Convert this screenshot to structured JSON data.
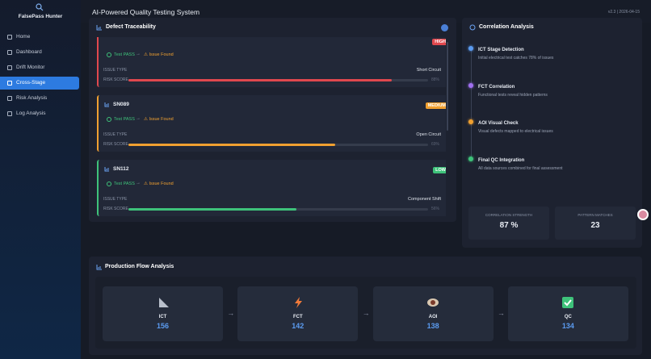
{
  "sidebar": {
    "title": "FalsePass Hunter",
    "nav": [
      "Home",
      "Dashboard",
      "Drift Monitor",
      "Cross-Stage",
      "Risk Analysis",
      "Log Analysis"
    ]
  },
  "header": {
    "title": "AI-Powered Quality Testing System",
    "version": "v2.3 | 2026-04-15"
  },
  "defect_traceability": {
    "title": "Defect Traceability",
    "cards": [
      {
        "severity": "HIGH",
        "from": "Test PASS",
        "to": "Issue Found",
        "issue_label": "ISSUE TYPE",
        "issue_type": "Short Circuit",
        "risk_label": "RISK SCORE",
        "risk_score": 88,
        "risk_score_label": "88%"
      },
      {
        "id": "SN089",
        "severity": "MEDIUM",
        "from": "Test PASS",
        "to": "Issue Found",
        "issue_label": "ISSUE TYPE",
        "issue_type": "Open Circuit",
        "risk_label": "RISK SCORE",
        "risk_score": 69,
        "risk_score_label": "69%"
      },
      {
        "id": "SN112",
        "severity": "LOW",
        "from": "Test PASS",
        "to": "Issue Found",
        "issue_label": "ISSUE TYPE",
        "issue_type": "Component Shift",
        "risk_label": "RISK SCORE",
        "risk_score": 56,
        "risk_score_label": "56%"
      }
    ]
  },
  "correlation": {
    "title": "Correlation Analysis",
    "items": [
      {
        "title": "ICT Stage Detection",
        "desc": "Initial electrical test catches 78% of issues"
      },
      {
        "title": "FCT Correlation",
        "desc": "Functional tests reveal hidden patterns"
      },
      {
        "title": "AOI Visual Check",
        "desc": "Visual defects mapped to electrical issues"
      },
      {
        "title": "Final QC Integration",
        "desc": "All data sources combined for final assessment"
      }
    ],
    "stats": [
      {
        "label": "CORRELATION STRENGTH",
        "value": "87 %"
      },
      {
        "label": "PATTERN MATCHES",
        "value": "23"
      }
    ]
  },
  "production_flow": {
    "title": "Production Flow Analysis",
    "stages": [
      {
        "name": "ICT",
        "count": 156
      },
      {
        "name": "FCT",
        "count": 142
      },
      {
        "name": "AOI",
        "count": 138
      },
      {
        "name": "QC",
        "count": 134
      }
    ]
  }
}
